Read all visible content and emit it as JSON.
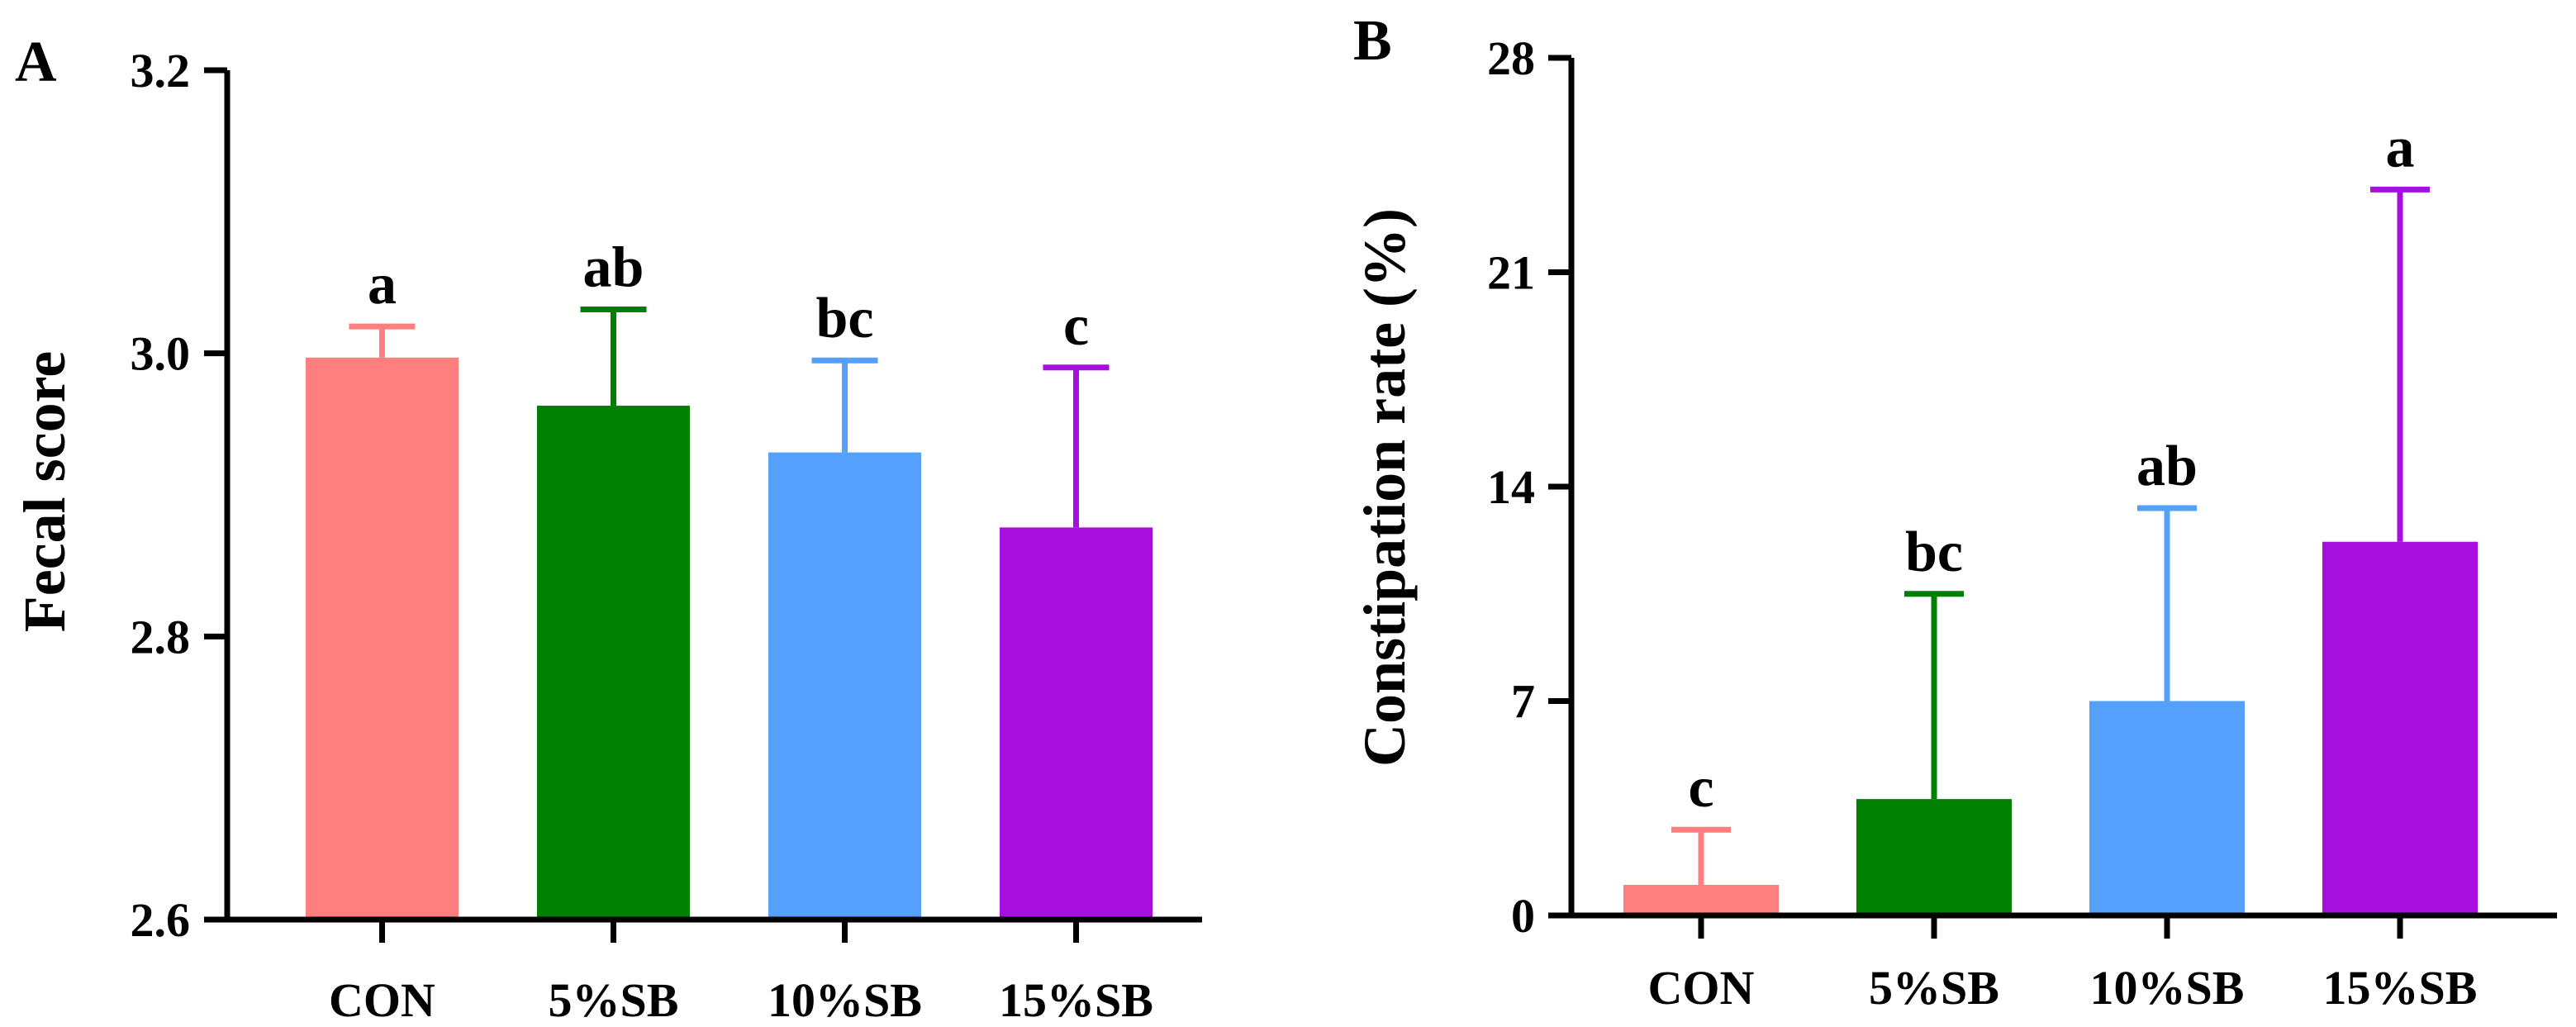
{
  "chart_data": [
    {
      "panel": "A",
      "type": "bar",
      "title": "",
      "xlabel": "",
      "ylabel": "Fecal score",
      "ylim": [
        2.6,
        3.2
      ],
      "yticks": [
        2.6,
        2.8,
        3.0,
        3.2
      ],
      "ytick_labels": [
        "2.6",
        "2.8",
        "3.0",
        "3.2"
      ],
      "categories": [
        "CON",
        "5%SB",
        "10%SB",
        "15%SB"
      ],
      "values": [
        2.997,
        2.963,
        2.93,
        2.877
      ],
      "errors": [
        0.022,
        0.068,
        0.065,
        0.113
      ],
      "significance": [
        "a",
        "ab",
        "bc",
        "c"
      ],
      "colors": [
        "#FF7F7F",
        "#007F00",
        "#55A0FA",
        "#A60FDD"
      ]
    },
    {
      "panel": "B",
      "type": "bar",
      "title": "",
      "xlabel": "",
      "ylabel": "Constipation rate (%)",
      "ylim": [
        0,
        28
      ],
      "yticks": [
        0,
        7,
        14,
        21,
        28
      ],
      "ytick_labels": [
        "0",
        "7",
        "14",
        "21",
        "28"
      ],
      "categories": [
        "CON",
        "5%SB",
        "10%SB",
        "15%SB"
      ],
      "values": [
        1.0,
        3.8,
        7.0,
        12.2
      ],
      "errors": [
        1.8,
        6.7,
        6.3,
        11.5
      ],
      "significance": [
        "c",
        "bc",
        "ab",
        "a"
      ],
      "colors": [
        "#FF7F7F",
        "#007F00",
        "#55A0FA",
        "#A60FDD"
      ]
    }
  ]
}
